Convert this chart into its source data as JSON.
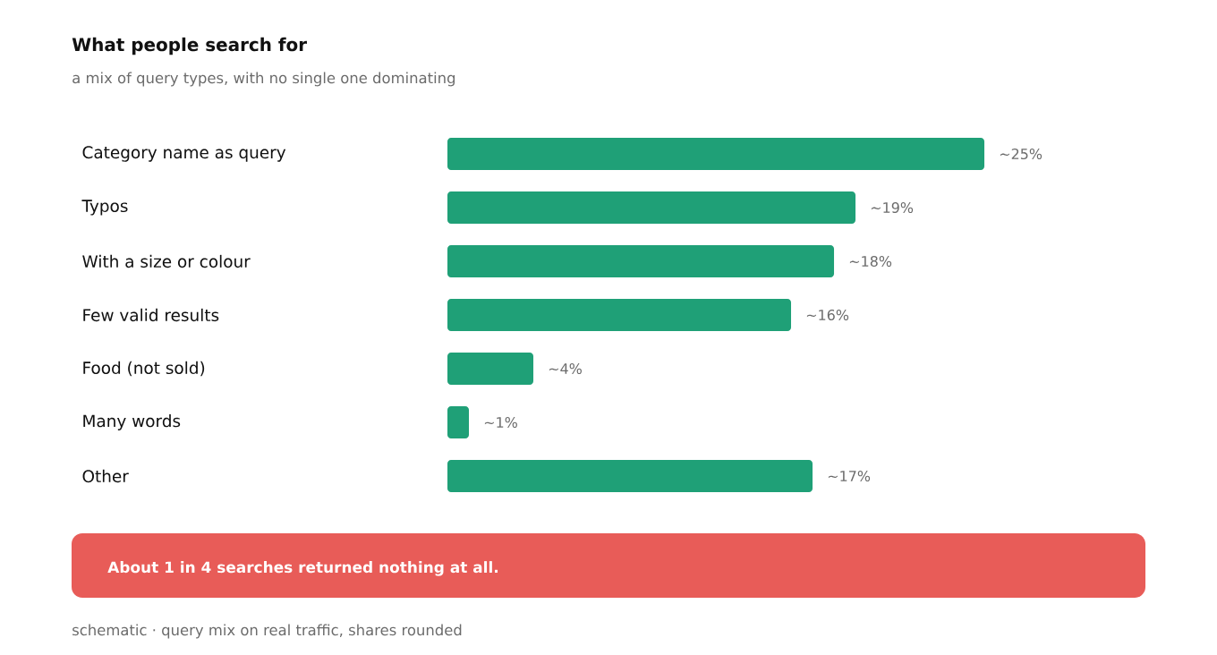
{
  "chart_data": {
    "type": "bar",
    "orientation": "horizontal",
    "title": "What people search for",
    "subtitle": "a mix of query types, with no single one dominating",
    "categories": [
      "Category name as query",
      "Typos",
      "With a size or colour",
      "Few valid results",
      "Food (not sold)",
      "Many words",
      "Other"
    ],
    "values": [
      25,
      19,
      18,
      16,
      4,
      1,
      17
    ],
    "value_labels": [
      "~25%",
      "~19%",
      "~18%",
      "~16%",
      "~4%",
      "~1%",
      "~17%"
    ],
    "color": "#1fa077",
    "xlim": [
      0,
      25
    ],
    "annotations": [
      "About 1 in 4 searches returned nothing at all.",
      "schematic · query mix on real traffic, shares rounded"
    ]
  }
}
